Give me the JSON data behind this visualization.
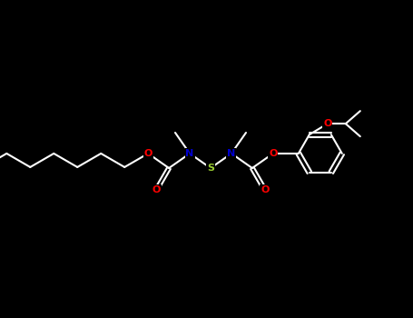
{
  "background_color": "#000000",
  "bond_color": "#ffffff",
  "atom_colors": {
    "O": "#ff0000",
    "N": "#0000cd",
    "S": "#9acd32",
    "C": "#ffffff"
  },
  "fig_width": 4.55,
  "fig_height": 3.5,
  "dpi": 100
}
